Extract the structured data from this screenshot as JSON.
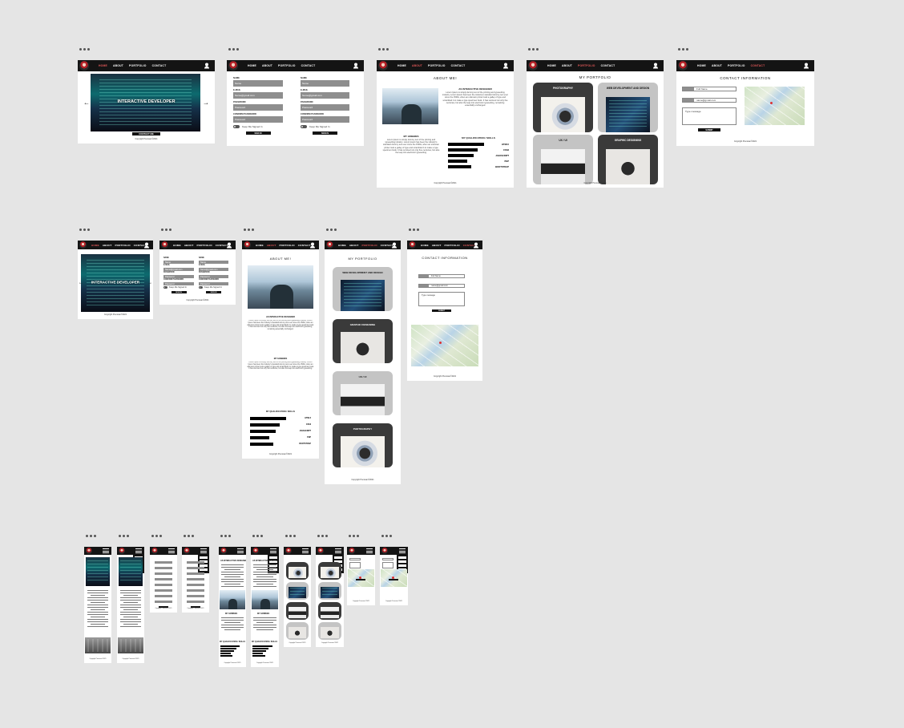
{
  "nav": {
    "home": "HOME",
    "about": "ABOUT",
    "portfolio": "PORTFOLIO",
    "contact": "CONTACT"
  },
  "hero": {
    "title": "INTERACTIVE DEVELOPER",
    "button": "CONTACT ME"
  },
  "footer": "Copyright Prenssan©2021",
  "signup": {
    "name_label": "NAME",
    "name_value": "Name",
    "email_label": "E-MAIL",
    "email_value": "Name@gmail.com",
    "password_label": "PASSWORD",
    "password_value": "Password",
    "confirm_label": "CONFIRM PASSWORD",
    "confirm_value": "Password",
    "toggle_label": "Keep Me Signed In",
    "submit": "SIGN IN"
  },
  "about": {
    "title": "ABOUT ME!",
    "designer_heading": "AS INTERACTIVE DESIGNER",
    "designer_text": "Lorem Ipsum is simply dummy text of the printing and typesetting industry. Lorem Ipsum has been the industry's standard dummy text ever since the 1500s, when an unknown printer took a galley of type and scrambled it to make a type specimen book. It has survived not only five centuries, but also the leap into electronic typesetting, remaining essentially unchanged.",
    "hobbies_heading": "MY HOBBIES",
    "hobbies_text": "Lorem Ipsum is simply dummy text of the printing and typesetting industry. Lorem Ipsum has been the industry's standard dummy text ever since the 1500s, when an unknown printer took a galley of type and scrambled it to make a type specimen book. It has survived not only five centuries, but also the leap into electronic typesetting.",
    "skills_heading": "MY QUALIFICATION / SKILLS",
    "skills": [
      {
        "name": "HTML5",
        "level": 0.85
      },
      {
        "name": "CSS3",
        "level": 0.7
      },
      {
        "name": "JAVASCRIPT",
        "level": 0.6
      },
      {
        "name": "PHP",
        "level": 0.45
      },
      {
        "name": "BOOTSTRAP",
        "level": 0.55
      }
    ]
  },
  "portfolio": {
    "title": "MY PORTFOLIO",
    "items": [
      "PHOTOGRAPHY",
      "WEB DEVELOPMENT AND DESIGN",
      "UX / UI",
      "GRAPHIC DESIGNING"
    ]
  },
  "contact": {
    "title": "CONTACT INFORMATION",
    "name_value": "Full Name",
    "email_value": "name@gmail.com",
    "message_value": "Type message",
    "submit": "SUBMIT"
  },
  "colors": {
    "nav_bg": "#141414",
    "active_link": "#e35a5a",
    "field_bg": "#8e8e8e",
    "canvas_bg": "#e5e5e5"
  }
}
